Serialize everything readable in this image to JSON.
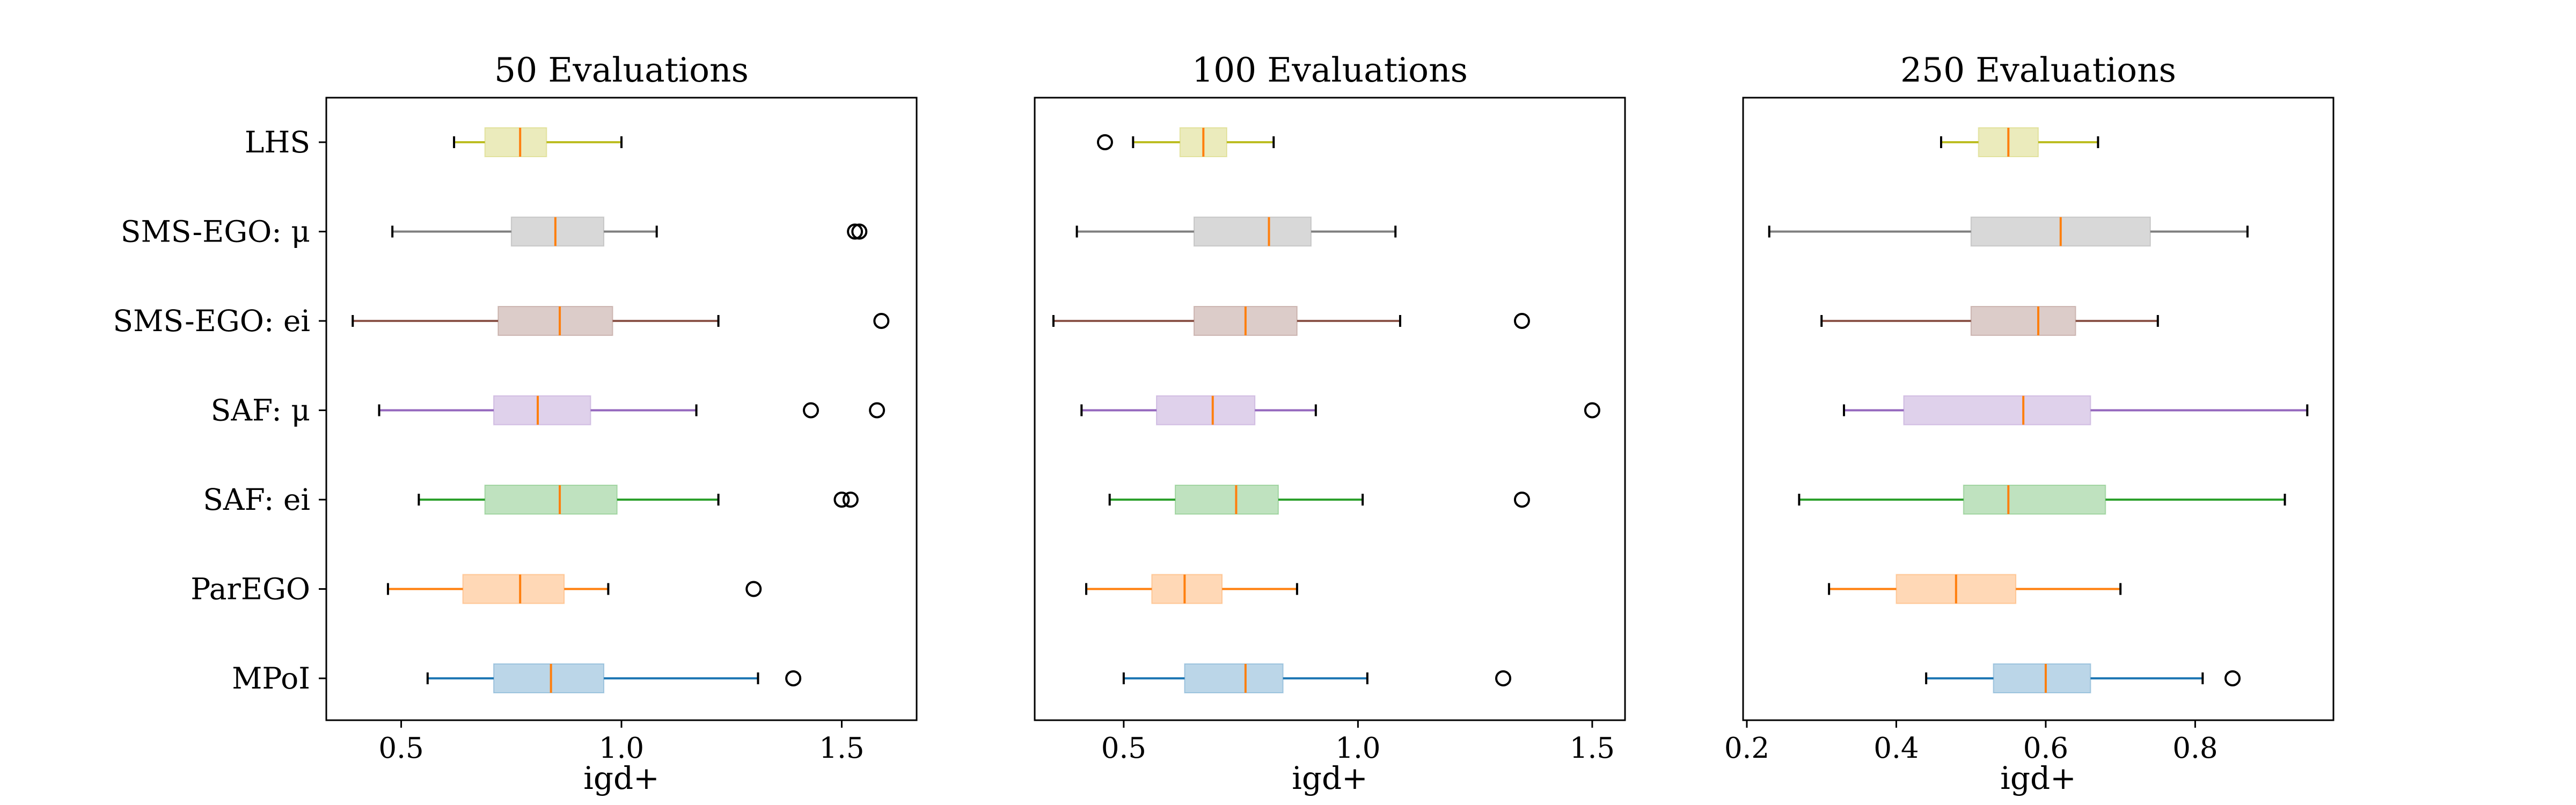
{
  "chart_data": [
    {
      "type": "boxplot",
      "orientation": "horizontal",
      "title": "50 Evaluations",
      "xlabel": "igd+",
      "xlim": [
        0.33,
        1.67
      ],
      "xticks": [
        0.5,
        1.0,
        1.5
      ],
      "xtick_labels": [
        "0.5",
        "1.0",
        "1.5"
      ],
      "grid": false,
      "categories": [
        "LHS",
        "SMS-EGO: μ",
        "SMS-EGO: ei",
        "SAF: μ",
        "SAF: ei",
        "ParEGO",
        "MPoI"
      ],
      "colors": [
        "#bcbd22",
        "#7f7f7f",
        "#8c564b",
        "#9467bd",
        "#2ca02c",
        "#ff7f0e",
        "#1f77b4"
      ],
      "median_color": "#ff7f0e",
      "series": [
        {
          "category": "LHS",
          "whisker_low": 0.62,
          "q1": 0.69,
          "median": 0.77,
          "q3": 0.83,
          "whisker_high": 1.0,
          "outliers": []
        },
        {
          "category": "SMS-EGO: μ",
          "whisker_low": 0.48,
          "q1": 0.75,
          "median": 0.85,
          "q3": 0.96,
          "whisker_high": 1.08,
          "outliers": [
            1.53,
            1.54
          ]
        },
        {
          "category": "SMS-EGO: ei",
          "whisker_low": 0.39,
          "q1": 0.72,
          "median": 0.86,
          "q3": 0.98,
          "whisker_high": 1.22,
          "outliers": [
            1.59
          ]
        },
        {
          "category": "SAF: μ",
          "whisker_low": 0.45,
          "q1": 0.71,
          "median": 0.81,
          "q3": 0.93,
          "whisker_high": 1.17,
          "outliers": [
            1.43,
            1.58
          ]
        },
        {
          "category": "SAF: ei",
          "whisker_low": 0.54,
          "q1": 0.69,
          "median": 0.86,
          "q3": 0.99,
          "whisker_high": 1.22,
          "outliers": [
            1.5,
            1.52
          ]
        },
        {
          "category": "ParEGO",
          "whisker_low": 0.47,
          "q1": 0.64,
          "median": 0.77,
          "q3": 0.87,
          "whisker_high": 0.97,
          "outliers": [
            1.3
          ]
        },
        {
          "category": "MPoI",
          "whisker_low": 0.56,
          "q1": 0.71,
          "median": 0.84,
          "q3": 0.96,
          "whisker_high": 1.31,
          "outliers": [
            1.39
          ]
        }
      ]
    },
    {
      "type": "boxplot",
      "orientation": "horizontal",
      "title": "100 Evaluations",
      "xlabel": "igd+",
      "xlim": [
        0.31,
        1.57
      ],
      "xticks": [
        0.5,
        1.0,
        1.5
      ],
      "xtick_labels": [
        "0.5",
        "1.0",
        "1.5"
      ],
      "grid": false,
      "categories": [
        "LHS",
        "SMS-EGO: μ",
        "SMS-EGO: ei",
        "SAF: μ",
        "SAF: ei",
        "ParEGO",
        "MPoI"
      ],
      "colors": [
        "#bcbd22",
        "#7f7f7f",
        "#8c564b",
        "#9467bd",
        "#2ca02c",
        "#ff7f0e",
        "#1f77b4"
      ],
      "median_color": "#ff7f0e",
      "series": [
        {
          "category": "LHS",
          "whisker_low": 0.52,
          "q1": 0.62,
          "median": 0.67,
          "q3": 0.72,
          "whisker_high": 0.82,
          "outliers": [
            0.46
          ]
        },
        {
          "category": "SMS-EGO: μ",
          "whisker_low": 0.4,
          "q1": 0.65,
          "median": 0.81,
          "q3": 0.9,
          "whisker_high": 1.08,
          "outliers": []
        },
        {
          "category": "SMS-EGO: ei",
          "whisker_low": 0.35,
          "q1": 0.65,
          "median": 0.76,
          "q3": 0.87,
          "whisker_high": 1.09,
          "outliers": [
            1.35
          ]
        },
        {
          "category": "SAF: μ",
          "whisker_low": 0.41,
          "q1": 0.57,
          "median": 0.69,
          "q3": 0.78,
          "whisker_high": 0.91,
          "outliers": [
            1.5
          ]
        },
        {
          "category": "SAF: ei",
          "whisker_low": 0.47,
          "q1": 0.61,
          "median": 0.74,
          "q3": 0.83,
          "whisker_high": 1.01,
          "outliers": [
            1.35
          ]
        },
        {
          "category": "ParEGO",
          "whisker_low": 0.42,
          "q1": 0.56,
          "median": 0.63,
          "q3": 0.71,
          "whisker_high": 0.87,
          "outliers": []
        },
        {
          "category": "MPoI",
          "whisker_low": 0.5,
          "q1": 0.63,
          "median": 0.76,
          "q3": 0.84,
          "whisker_high": 1.02,
          "outliers": [
            1.31
          ]
        }
      ]
    },
    {
      "type": "boxplot",
      "orientation": "horizontal",
      "title": "250 Evaluations",
      "xlabel": "igd+",
      "xlim": [
        0.195,
        0.985
      ],
      "xticks": [
        0.2,
        0.4,
        0.6,
        0.8
      ],
      "xtick_labels": [
        "0.2",
        "0.4",
        "0.6",
        "0.8"
      ],
      "grid": false,
      "categories": [
        "LHS",
        "SMS-EGO: μ",
        "SMS-EGO: ei",
        "SAF: μ",
        "SAF: ei",
        "ParEGO",
        "MPoI"
      ],
      "colors": [
        "#bcbd22",
        "#7f7f7f",
        "#8c564b",
        "#9467bd",
        "#2ca02c",
        "#ff7f0e",
        "#1f77b4"
      ],
      "median_color": "#ff7f0e",
      "series": [
        {
          "category": "LHS",
          "whisker_low": 0.46,
          "q1": 0.51,
          "median": 0.55,
          "q3": 0.59,
          "whisker_high": 0.67,
          "outliers": []
        },
        {
          "category": "SMS-EGO: μ",
          "whisker_low": 0.23,
          "q1": 0.5,
          "median": 0.62,
          "q3": 0.74,
          "whisker_high": 0.87,
          "outliers": []
        },
        {
          "category": "SMS-EGO: ei",
          "whisker_low": 0.3,
          "q1": 0.5,
          "median": 0.59,
          "q3": 0.64,
          "whisker_high": 0.75,
          "outliers": []
        },
        {
          "category": "SAF: μ",
          "whisker_low": 0.33,
          "q1": 0.41,
          "median": 0.57,
          "q3": 0.66,
          "whisker_high": 0.95,
          "outliers": []
        },
        {
          "category": "SAF: ei",
          "whisker_low": 0.27,
          "q1": 0.49,
          "median": 0.55,
          "q3": 0.68,
          "whisker_high": 0.92,
          "outliers": []
        },
        {
          "category": "ParEGO",
          "whisker_low": 0.31,
          "q1": 0.4,
          "median": 0.48,
          "q3": 0.56,
          "whisker_high": 0.7,
          "outliers": []
        },
        {
          "category": "MPoI",
          "whisker_low": 0.44,
          "q1": 0.53,
          "median": 0.6,
          "q3": 0.66,
          "whisker_high": 0.81,
          "outliers": [
            0.85
          ]
        }
      ]
    }
  ]
}
